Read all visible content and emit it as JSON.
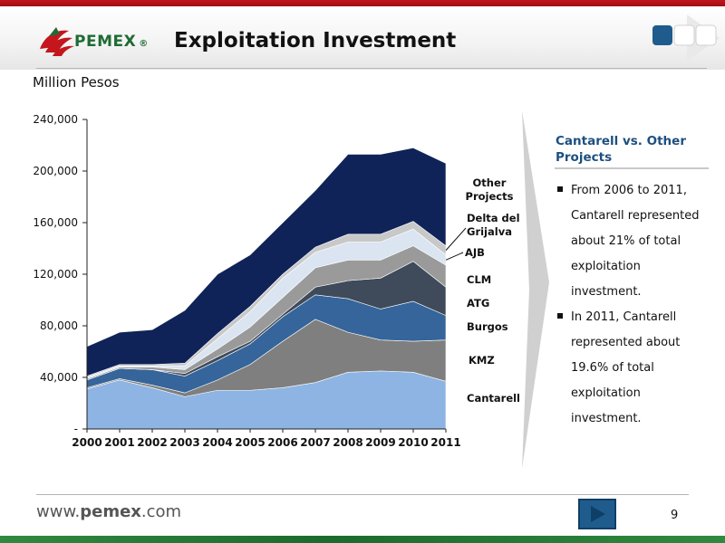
{
  "header": {
    "brand": "PEMEX",
    "registered": "®",
    "title": "Exploitation Investment"
  },
  "units_label": "Million Pesos",
  "chart_data": {
    "type": "area",
    "stacked": true,
    "x": [
      "2000",
      "2001",
      "2002",
      "2003",
      "2004",
      "2005",
      "2006",
      "2007",
      "2008",
      "2009",
      "2010",
      "2011"
    ],
    "ylim": [
      0,
      240000
    ],
    "yticks": [
      {
        "value": 0,
        "label": "-"
      },
      {
        "value": 40000,
        "label": "40,000"
      },
      {
        "value": 80000,
        "label": "80,000"
      },
      {
        "value": 120000,
        "label": "120,000"
      },
      {
        "value": 160000,
        "label": "160,000"
      },
      {
        "value": 200000,
        "label": "200,000"
      },
      {
        "value": 240000,
        "label": "240,000"
      }
    ],
    "series": [
      {
        "name": "Cantarell",
        "color": "#8eb4e3",
        "values": [
          31000,
          38000,
          32000,
          25000,
          30000,
          30000,
          32000,
          36000,
          44000,
          45000,
          44000,
          37000
        ]
      },
      {
        "name": "KMZ",
        "color": "#7f7f7f",
        "values": [
          1000,
          1000,
          2000,
          3000,
          8000,
          20000,
          36000,
          49000,
          31000,
          24000,
          24000,
          32000
        ]
      },
      {
        "name": "Burgos",
        "color": "#35659a",
        "values": [
          6000,
          8000,
          12000,
          13000,
          15000,
          16000,
          19000,
          19000,
          26000,
          24000,
          31000,
          19000
        ]
      },
      {
        "name": "ATG",
        "color": "#3f4a5a",
        "values": [
          0,
          0,
          0,
          2000,
          3000,
          2000,
          2000,
          6000,
          14000,
          24000,
          31000,
          22000
        ]
      },
      {
        "name": "CLM",
        "color": "#9a9a9a",
        "values": [
          1000,
          1000,
          2000,
          3000,
          6000,
          11000,
          13000,
          15000,
          16000,
          14000,
          12000,
          17000
        ]
      },
      {
        "name": "AJB",
        "color": "#dbe5f1",
        "values": [
          1000,
          1000,
          1000,
          3000,
          8000,
          12000,
          15000,
          12000,
          14000,
          14000,
          13000,
          8000
        ]
      },
      {
        "name": "Delta del Grijalva",
        "color": "#c8c8c8",
        "values": [
          1000,
          1000,
          1000,
          2000,
          4000,
          4000,
          3000,
          4000,
          6000,
          6000,
          6000,
          7000
        ]
      },
      {
        "name": "Other Projects",
        "color": "#0f2358",
        "values": [
          23000,
          25000,
          27000,
          41000,
          46000,
          40000,
          40000,
          44000,
          62000,
          62000,
          57000,
          64000
        ]
      }
    ],
    "legend_labels": [
      {
        "series": "Other Projects",
        "text": "Other\nProjects"
      },
      {
        "series": "Delta del Grijalva",
        "text": "Delta del\nGrijalva"
      },
      {
        "series": "AJB",
        "text": "AJB"
      },
      {
        "series": "CLM",
        "text": "CLM"
      },
      {
        "series": "ATG",
        "text": "ATG"
      },
      {
        "series": "Burgos",
        "text": "Burgos"
      },
      {
        "series": "KMZ",
        "text": "KMZ"
      },
      {
        "series": "Cantarell",
        "text": "Cantarell"
      }
    ]
  },
  "side_panel": {
    "title": "Cantarell vs. Other Projects",
    "bullets": [
      "From 2006 to 2011, Cantarell represented about 21% of total exploitation investment.",
      "In 2011, Cantarell represented about 19.6% of total exploitation investment."
    ]
  },
  "footer": {
    "url_prefix": "www.",
    "url_brand": "pemex",
    "url_suffix": ".com",
    "page_number": "9"
  },
  "colors": {
    "brand_red": "#c4161c",
    "brand_green": "#1f6b35",
    "accent_blue": "#1d4f7e"
  }
}
